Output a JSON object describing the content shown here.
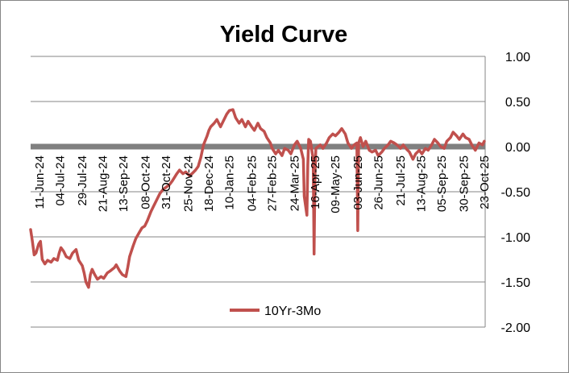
{
  "chart_data": {
    "type": "line",
    "title": "Yield Curve",
    "xlabel": "",
    "ylabel": "",
    "ylim": [
      -2.0,
      1.0
    ],
    "yticks": [
      "1.00",
      "0.50",
      "0.00",
      "-0.50",
      "-1.00",
      "-1.50",
      "-2.00"
    ],
    "ytick_values": [
      1.0,
      0.5,
      0.0,
      -0.5,
      -1.0,
      -1.5,
      -2.0
    ],
    "x_start": "2024-06-01",
    "x_end": "2025-10-24",
    "xticks": [
      {
        "date": "2024-06-11",
        "label": "11-Jun-24"
      },
      {
        "date": "2024-07-04",
        "label": "04-Jul-24"
      },
      {
        "date": "2024-07-29",
        "label": "29-Jul-24"
      },
      {
        "date": "2024-08-21",
        "label": "21-Aug-24"
      },
      {
        "date": "2024-09-13",
        "label": "13-Sep-24"
      },
      {
        "date": "2024-10-08",
        "label": "08-Oct-24"
      },
      {
        "date": "2024-10-31",
        "label": "31-Oct-24"
      },
      {
        "date": "2024-11-25",
        "label": "25-Nov-24"
      },
      {
        "date": "2024-12-18",
        "label": "18-Dec-24"
      },
      {
        "date": "2025-01-10",
        "label": "10-Jan-25"
      },
      {
        "date": "2025-02-04",
        "label": "04-Feb-25"
      },
      {
        "date": "2025-02-27",
        "label": "27-Feb-25"
      },
      {
        "date": "2025-03-24",
        "label": "24-Mar-25"
      },
      {
        "date": "2025-04-16",
        "label": "16-Apr-25"
      },
      {
        "date": "2025-05-09",
        "label": "09-May-25"
      },
      {
        "date": "2025-06-03",
        "label": "03-Jun-25"
      },
      {
        "date": "2025-06-26",
        "label": "26-Jun-25"
      },
      {
        "date": "2025-07-21",
        "label": "21-Jul-25"
      },
      {
        "date": "2025-08-13",
        "label": "13-Aug-25"
      },
      {
        "date": "2025-09-05",
        "label": "05-Sep-25"
      },
      {
        "date": "2025-09-30",
        "label": "30-Sep-25"
      },
      {
        "date": "2025-10-23",
        "label": "23-Oct-25"
      }
    ],
    "grid": true,
    "zero_line_color": "#808080",
    "legend_position": "bottom-center",
    "series": [
      {
        "name": "10Yr-3Mo",
        "color": "#C0504D",
        "points": [
          [
            "2024-06-01",
            -0.92
          ],
          [
            "2024-06-03",
            -1.05
          ],
          [
            "2024-06-05",
            -1.2
          ],
          [
            "2024-06-07",
            -1.18
          ],
          [
            "2024-06-10",
            -1.08
          ],
          [
            "2024-06-12",
            -1.05
          ],
          [
            "2024-06-14",
            -1.25
          ],
          [
            "2024-06-17",
            -1.3
          ],
          [
            "2024-06-20",
            -1.26
          ],
          [
            "2024-06-24",
            -1.28
          ],
          [
            "2024-06-27",
            -1.24
          ],
          [
            "2024-07-01",
            -1.26
          ],
          [
            "2024-07-03",
            -1.18
          ],
          [
            "2024-07-05",
            -1.12
          ],
          [
            "2024-07-08",
            -1.16
          ],
          [
            "2024-07-11",
            -1.22
          ],
          [
            "2024-07-15",
            -1.24
          ],
          [
            "2024-07-18",
            -1.18
          ],
          [
            "2024-07-22",
            -1.14
          ],
          [
            "2024-07-25",
            -1.26
          ],
          [
            "2024-07-29",
            -1.32
          ],
          [
            "2024-07-31",
            -1.4
          ],
          [
            "2024-08-02",
            -1.5
          ],
          [
            "2024-08-05",
            -1.56
          ],
          [
            "2024-08-07",
            -1.42
          ],
          [
            "2024-08-09",
            -1.36
          ],
          [
            "2024-08-12",
            -1.42
          ],
          [
            "2024-08-15",
            -1.47
          ],
          [
            "2024-08-19",
            -1.44
          ],
          [
            "2024-08-22",
            -1.46
          ],
          [
            "2024-08-26",
            -1.4
          ],
          [
            "2024-08-29",
            -1.38
          ],
          [
            "2024-09-03",
            -1.34
          ],
          [
            "2024-09-05",
            -1.31
          ],
          [
            "2024-09-09",
            -1.38
          ],
          [
            "2024-09-12",
            -1.42
          ],
          [
            "2024-09-16",
            -1.44
          ],
          [
            "2024-09-18",
            -1.34
          ],
          [
            "2024-09-20",
            -1.22
          ],
          [
            "2024-09-24",
            -1.1
          ],
          [
            "2024-09-27",
            -1.02
          ],
          [
            "2024-10-01",
            -0.95
          ],
          [
            "2024-10-04",
            -0.9
          ],
          [
            "2024-10-07",
            -0.88
          ],
          [
            "2024-10-10",
            -0.82
          ],
          [
            "2024-10-14",
            -0.72
          ],
          [
            "2024-10-17",
            -0.66
          ],
          [
            "2024-10-21",
            -0.58
          ],
          [
            "2024-10-24",
            -0.52
          ],
          [
            "2024-10-28",
            -0.47
          ],
          [
            "2024-10-31",
            -0.45
          ],
          [
            "2024-11-04",
            -0.42
          ],
          [
            "2024-11-07",
            -0.38
          ],
          [
            "2024-11-12",
            -0.3
          ],
          [
            "2024-11-15",
            -0.26
          ],
          [
            "2024-11-19",
            -0.3
          ],
          [
            "2024-11-22",
            -0.28
          ],
          [
            "2024-11-26",
            -0.32
          ],
          [
            "2024-11-29",
            -0.3
          ],
          [
            "2024-12-03",
            -0.26
          ],
          [
            "2024-12-06",
            -0.22
          ],
          [
            "2024-12-09",
            -0.12
          ],
          [
            "2024-12-12",
            0.02
          ],
          [
            "2024-12-16",
            0.12
          ],
          [
            "2024-12-18",
            0.18
          ],
          [
            "2024-12-20",
            0.22
          ],
          [
            "2024-12-24",
            0.26
          ],
          [
            "2024-12-27",
            0.3
          ],
          [
            "2024-12-31",
            0.22
          ],
          [
            "2025-01-03",
            0.28
          ],
          [
            "2025-01-07",
            0.36
          ],
          [
            "2025-01-10",
            0.4
          ],
          [
            "2025-01-14",
            0.41
          ],
          [
            "2025-01-17",
            0.32
          ],
          [
            "2025-01-21",
            0.26
          ],
          [
            "2025-01-24",
            0.3
          ],
          [
            "2025-01-28",
            0.22
          ],
          [
            "2025-01-31",
            0.28
          ],
          [
            "2025-02-04",
            0.22
          ],
          [
            "2025-02-07",
            0.18
          ],
          [
            "2025-02-11",
            0.26
          ],
          [
            "2025-02-14",
            0.2
          ],
          [
            "2025-02-18",
            0.17
          ],
          [
            "2025-02-21",
            0.1
          ],
          [
            "2025-02-25",
            0.04
          ],
          [
            "2025-02-27",
            -0.02
          ],
          [
            "2025-03-03",
            -0.08
          ],
          [
            "2025-03-06",
            -0.04
          ],
          [
            "2025-03-10",
            -0.1
          ],
          [
            "2025-03-13",
            -0.02
          ],
          [
            "2025-03-17",
            -0.04
          ],
          [
            "2025-03-20",
            -0.08
          ],
          [
            "2025-03-24",
            0.02
          ],
          [
            "2025-03-27",
            0.06
          ],
          [
            "2025-03-31",
            -0.02
          ],
          [
            "2025-04-03",
            -0.14
          ],
          [
            "2025-04-04",
            -0.55
          ],
          [
            "2025-04-07",
            -0.76
          ],
          [
            "2025-04-08",
            -0.2
          ],
          [
            "2025-04-09",
            0.08
          ],
          [
            "2025-04-11",
            0.06
          ],
          [
            "2025-04-14",
            -0.14
          ],
          [
            "2025-04-15",
            -1.19
          ],
          [
            "2025-04-16",
            -0.32
          ],
          [
            "2025-04-17",
            -0.02
          ],
          [
            "2025-04-22",
            0.02
          ],
          [
            "2025-04-25",
            -0.02
          ],
          [
            "2025-04-29",
            0.04
          ],
          [
            "2025-05-02",
            0.1
          ],
          [
            "2025-05-06",
            0.14
          ],
          [
            "2025-05-09",
            0.12
          ],
          [
            "2025-05-13",
            0.16
          ],
          [
            "2025-05-16",
            0.2
          ],
          [
            "2025-05-20",
            0.14
          ],
          [
            "2025-05-23",
            0.04
          ],
          [
            "2025-05-27",
            -0.02
          ],
          [
            "2025-05-30",
            0.02
          ],
          [
            "2025-06-02",
            0.04
          ],
          [
            "2025-06-03",
            -0.93
          ],
          [
            "2025-06-04",
            0.04
          ],
          [
            "2025-06-06",
            0.1
          ],
          [
            "2025-06-09",
            0.0
          ],
          [
            "2025-06-12",
            0.06
          ],
          [
            "2025-06-16",
            -0.04
          ],
          [
            "2025-06-19",
            -0.06
          ],
          [
            "2025-06-23",
            -0.04
          ],
          [
            "2025-06-26",
            -0.1
          ],
          [
            "2025-06-30",
            -0.06
          ],
          [
            "2025-07-03",
            -0.02
          ],
          [
            "2025-07-07",
            0.02
          ],
          [
            "2025-07-10",
            0.06
          ],
          [
            "2025-07-14",
            0.04
          ],
          [
            "2025-07-17",
            0.02
          ],
          [
            "2025-07-21",
            -0.02
          ],
          [
            "2025-07-24",
            0.02
          ],
          [
            "2025-07-28",
            -0.03
          ],
          [
            "2025-07-31",
            -0.06
          ],
          [
            "2025-08-04",
            -0.14
          ],
          [
            "2025-08-07",
            -0.08
          ],
          [
            "2025-08-11",
            -0.04
          ],
          [
            "2025-08-14",
            -0.08
          ],
          [
            "2025-08-18",
            -0.02
          ],
          [
            "2025-08-21",
            -0.04
          ],
          [
            "2025-08-25",
            0.02
          ],
          [
            "2025-08-28",
            0.08
          ],
          [
            "2025-09-01",
            0.04
          ],
          [
            "2025-09-04",
            0.0
          ],
          [
            "2025-09-08",
            -0.02
          ],
          [
            "2025-09-11",
            0.06
          ],
          [
            "2025-09-15",
            0.1
          ],
          [
            "2025-09-18",
            0.16
          ],
          [
            "2025-09-22",
            0.12
          ],
          [
            "2025-09-25",
            0.08
          ],
          [
            "2025-09-29",
            0.14
          ],
          [
            "2025-10-02",
            0.1
          ],
          [
            "2025-10-06",
            0.08
          ],
          [
            "2025-10-09",
            0.02
          ],
          [
            "2025-10-13",
            -0.04
          ],
          [
            "2025-10-15",
            0.0
          ],
          [
            "2025-10-17",
            0.04
          ],
          [
            "2025-10-21",
            0.02
          ],
          [
            "2025-10-23",
            0.06
          ]
        ]
      }
    ]
  }
}
